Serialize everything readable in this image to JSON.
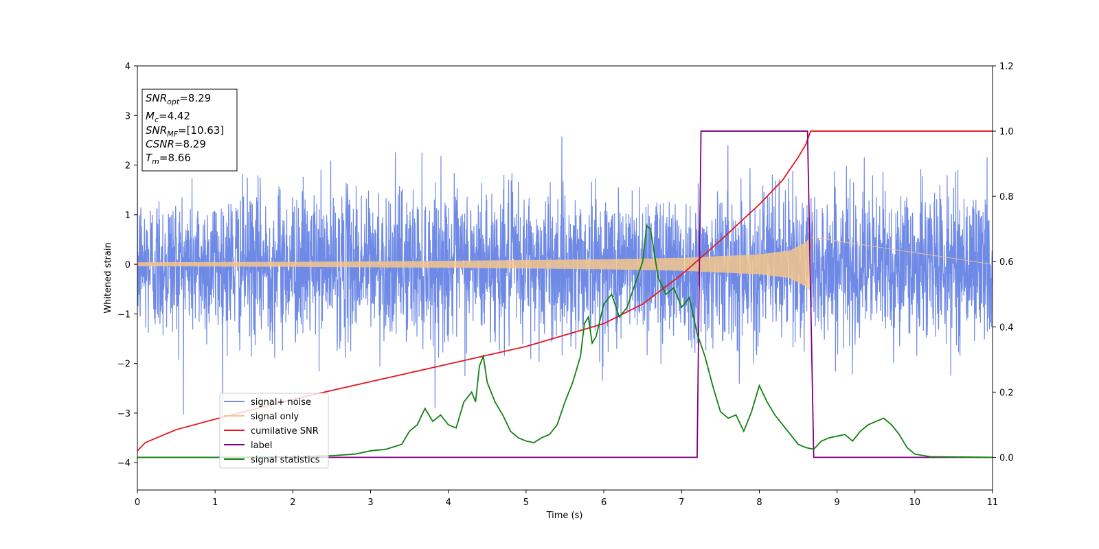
{
  "chart_data": {
    "type": "line",
    "title": "",
    "xlabel": "Time (s)",
    "ylabel": "Whitened strain",
    "y2label": "",
    "xlim": [
      0,
      11
    ],
    "ylim": [
      -4.55,
      4.0
    ],
    "y2lim": [
      -0.1,
      1.2
    ],
    "xticks": [
      0,
      1,
      2,
      3,
      4,
      5,
      6,
      7,
      8,
      9,
      10,
      11
    ],
    "yticks": [
      -4,
      -3,
      -2,
      -1,
      0,
      1,
      2,
      3,
      4
    ],
    "y2ticks": [
      0.0,
      0.2,
      0.4,
      0.6,
      0.8,
      1.0,
      1.2
    ],
    "grid": false,
    "legend_position": "lower-left",
    "annotation": {
      "lines": [
        {
          "base": "SNR",
          "sub": "opt",
          "value": "=8.29"
        },
        {
          "base": "M",
          "sub": "c",
          "value": "=4.42"
        },
        {
          "base": "SNR",
          "sub": "MF",
          "value": "=[10.63]"
        },
        {
          "base": "CSNR",
          "sub": "",
          "value": "=8.29"
        },
        {
          "base": "T",
          "sub": "m",
          "value": "=8.66"
        }
      ]
    },
    "series": [
      {
        "name": "signal+ noise",
        "axis": "left",
        "color": "#6f8ae6",
        "kind": "noise",
        "sigma": 0.75,
        "time_range": [
          0,
          11
        ]
      },
      {
        "name": "signal only",
        "axis": "left",
        "color": "#f5c68a",
        "kind": "chirp_envelope",
        "envelope": [
          [
            0,
            0.04
          ],
          [
            1,
            0.045
          ],
          [
            2,
            0.05
          ],
          [
            3,
            0.06
          ],
          [
            4,
            0.07
          ],
          [
            5,
            0.085
          ],
          [
            6,
            0.1
          ],
          [
            7,
            0.13
          ],
          [
            8,
            0.2
          ],
          [
            8.4,
            0.28
          ],
          [
            8.6,
            0.45
          ],
          [
            8.66,
            0.55
          ]
        ],
        "end_time": 8.66
      },
      {
        "name": "cumilative SNR",
        "axis": "right",
        "color": "#e8141c",
        "points": [
          [
            0,
            0.02
          ],
          [
            0.1,
            0.045
          ],
          [
            0.5,
            0.085
          ],
          [
            1,
            0.117
          ],
          [
            2,
            0.178
          ],
          [
            3,
            0.232
          ],
          [
            4,
            0.286
          ],
          [
            5,
            0.34
          ],
          [
            6,
            0.41
          ],
          [
            6.5,
            0.47
          ],
          [
            7,
            0.56
          ],
          [
            7.5,
            0.665
          ],
          [
            8,
            0.775
          ],
          [
            8.3,
            0.85
          ],
          [
            8.5,
            0.92
          ],
          [
            8.6,
            0.96
          ],
          [
            8.66,
            1.0
          ],
          [
            11,
            1.0
          ]
        ]
      },
      {
        "name": "label",
        "axis": "right",
        "color": "#800080",
        "points": [
          [
            0,
            0
          ],
          [
            7.2,
            0
          ],
          [
            7.25,
            1.0
          ],
          [
            8.62,
            1.0
          ],
          [
            8.7,
            0
          ],
          [
            11,
            0
          ]
        ]
      },
      {
        "name": "signal statistics",
        "axis": "right",
        "color": "#118011",
        "points": [
          [
            0,
            0.0
          ],
          [
            1,
            0.0
          ],
          [
            2,
            0.002
          ],
          [
            2.5,
            0.005
          ],
          [
            2.8,
            0.01
          ],
          [
            3.0,
            0.02
          ],
          [
            3.2,
            0.025
          ],
          [
            3.4,
            0.04
          ],
          [
            3.5,
            0.08
          ],
          [
            3.6,
            0.1
          ],
          [
            3.7,
            0.15
          ],
          [
            3.8,
            0.11
          ],
          [
            3.9,
            0.13
          ],
          [
            4.0,
            0.1
          ],
          [
            4.1,
            0.09
          ],
          [
            4.2,
            0.17
          ],
          [
            4.3,
            0.2
          ],
          [
            4.35,
            0.17
          ],
          [
            4.4,
            0.28
          ],
          [
            4.45,
            0.31
          ],
          [
            4.5,
            0.23
          ],
          [
            4.6,
            0.17
          ],
          [
            4.7,
            0.13
          ],
          [
            4.8,
            0.08
          ],
          [
            4.9,
            0.06
          ],
          [
            5.0,
            0.05
          ],
          [
            5.1,
            0.045
          ],
          [
            5.2,
            0.06
          ],
          [
            5.3,
            0.07
          ],
          [
            5.4,
            0.1
          ],
          [
            5.5,
            0.17
          ],
          [
            5.6,
            0.23
          ],
          [
            5.7,
            0.31
          ],
          [
            5.75,
            0.41
          ],
          [
            5.8,
            0.43
          ],
          [
            5.85,
            0.35
          ],
          [
            5.9,
            0.37
          ],
          [
            6.0,
            0.47
          ],
          [
            6.1,
            0.5
          ],
          [
            6.2,
            0.43
          ],
          [
            6.3,
            0.46
          ],
          [
            6.4,
            0.53
          ],
          [
            6.5,
            0.6
          ],
          [
            6.55,
            0.71
          ],
          [
            6.6,
            0.7
          ],
          [
            6.7,
            0.55
          ],
          [
            6.8,
            0.5
          ],
          [
            6.9,
            0.52
          ],
          [
            7.0,
            0.46
          ],
          [
            7.1,
            0.49
          ],
          [
            7.2,
            0.38
          ],
          [
            7.3,
            0.31
          ],
          [
            7.4,
            0.22
          ],
          [
            7.5,
            0.14
          ],
          [
            7.6,
            0.12
          ],
          [
            7.7,
            0.13
          ],
          [
            7.8,
            0.08
          ],
          [
            7.9,
            0.14
          ],
          [
            8.0,
            0.22
          ],
          [
            8.1,
            0.17
          ],
          [
            8.2,
            0.13
          ],
          [
            8.3,
            0.1
          ],
          [
            8.4,
            0.07
          ],
          [
            8.5,
            0.04
          ],
          [
            8.6,
            0.03
          ],
          [
            8.7,
            0.025
          ],
          [
            8.8,
            0.05
          ],
          [
            8.9,
            0.06
          ],
          [
            9.0,
            0.065
          ],
          [
            9.1,
            0.07
          ],
          [
            9.2,
            0.05
          ],
          [
            9.3,
            0.08
          ],
          [
            9.4,
            0.1
          ],
          [
            9.5,
            0.11
          ],
          [
            9.6,
            0.12
          ],
          [
            9.7,
            0.1
          ],
          [
            9.8,
            0.07
          ],
          [
            9.9,
            0.03
          ],
          [
            10.0,
            0.01
          ],
          [
            10.2,
            0.002
          ],
          [
            11,
            0.0
          ]
        ]
      }
    ]
  }
}
